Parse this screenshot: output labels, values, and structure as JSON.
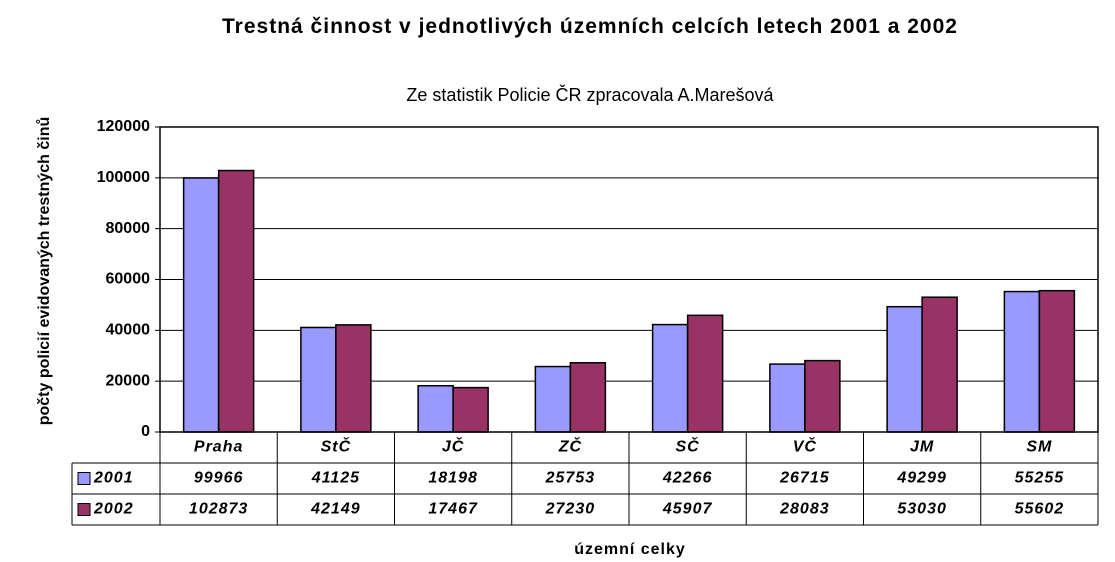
{
  "chart_data": {
    "type": "bar",
    "title": "Trestná činnost v jednotlivých územních celcích letech 2001 a 2002",
    "subtitle": "Ze statistik Policie ČR zpracovala  A.Marešová",
    "y_label": "počty policií evidovaných trestných činů",
    "x_label": "územní celky",
    "categories": [
      "Praha",
      "StČ",
      "JČ",
      "ZČ",
      "SČ",
      "VČ",
      "JM",
      "SM"
    ],
    "series": [
      {
        "name": "2001",
        "color": "#9999ff",
        "values": [
          99966,
          41125,
          18198,
          25753,
          42266,
          26715,
          49299,
          55255
        ]
      },
      {
        "name": "2002",
        "color": "#993366",
        "values": [
          102873,
          42149,
          17467,
          27230,
          45907,
          28083,
          53030,
          55602
        ]
      }
    ],
    "ylim": [
      0,
      120000
    ],
    "yticks": [
      0,
      20000,
      40000,
      60000,
      80000,
      100000,
      120000
    ],
    "grid": true,
    "data_table": true
  }
}
